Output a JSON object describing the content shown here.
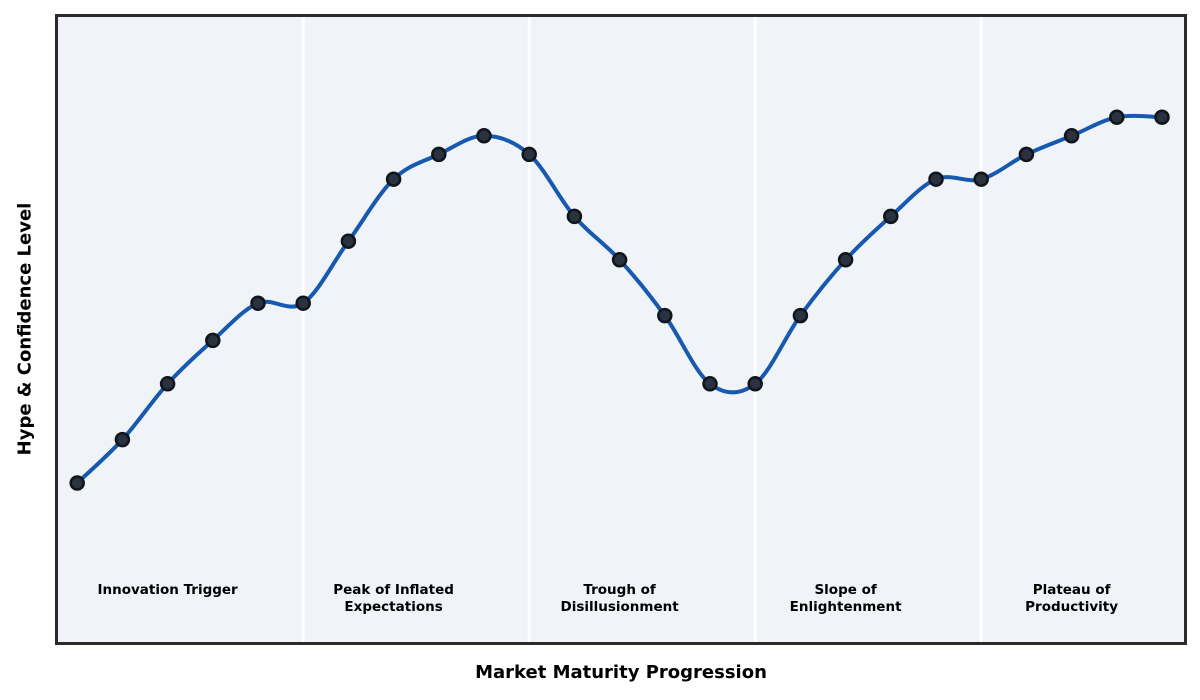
{
  "chart_data": {
    "type": "line",
    "title": "",
    "xlabel": "Market Maturity Progression",
    "ylabel": "Hype & Confidence Level",
    "x": [
      0,
      1,
      2,
      3,
      4,
      5,
      6,
      7,
      8,
      9,
      10,
      11,
      12,
      13,
      14,
      15,
      16,
      17,
      18,
      19,
      20,
      21,
      22,
      23,
      24
    ],
    "series": [
      {
        "name": "Hype & Confidence",
        "values": [
          25,
          32,
          41,
          48,
          54,
          54,
          64,
          74,
          78,
          81,
          78,
          68,
          61,
          52,
          41,
          41,
          52,
          61,
          68,
          74,
          74,
          78,
          81,
          84,
          84
        ]
      }
    ],
    "ylim": [
      0,
      100
    ],
    "xlim": [
      -0.47,
      24.53
    ],
    "grid": false,
    "legend_position": "none",
    "curve_style": "smooth-spline-through-points",
    "marker": "filled-circle",
    "phases": [
      {
        "label_lines": [
          "Innovation Trigger"
        ],
        "center_x": 2
      },
      {
        "label_lines": [
          "Peak of Inflated",
          "Expectations"
        ],
        "center_x": 7
      },
      {
        "label_lines": [
          "Trough of",
          "Disillusionment"
        ],
        "center_x": 12
      },
      {
        "label_lines": [
          "Slope of",
          "Enlightenment"
        ],
        "center_x": 17
      },
      {
        "label_lines": [
          "Plateau of",
          "Productivity"
        ],
        "center_x": 22
      }
    ],
    "phase_boundaries_x": [
      5,
      10,
      15,
      20
    ],
    "colors": {
      "line": "#1659ae",
      "marker_fill": "#2a3240",
      "marker_edge": "#10151c",
      "plot_background": "#f0f3f7",
      "phase_divider": "#ffffff",
      "axes_border": "#2b2b2b",
      "label_text": "#000000"
    }
  }
}
